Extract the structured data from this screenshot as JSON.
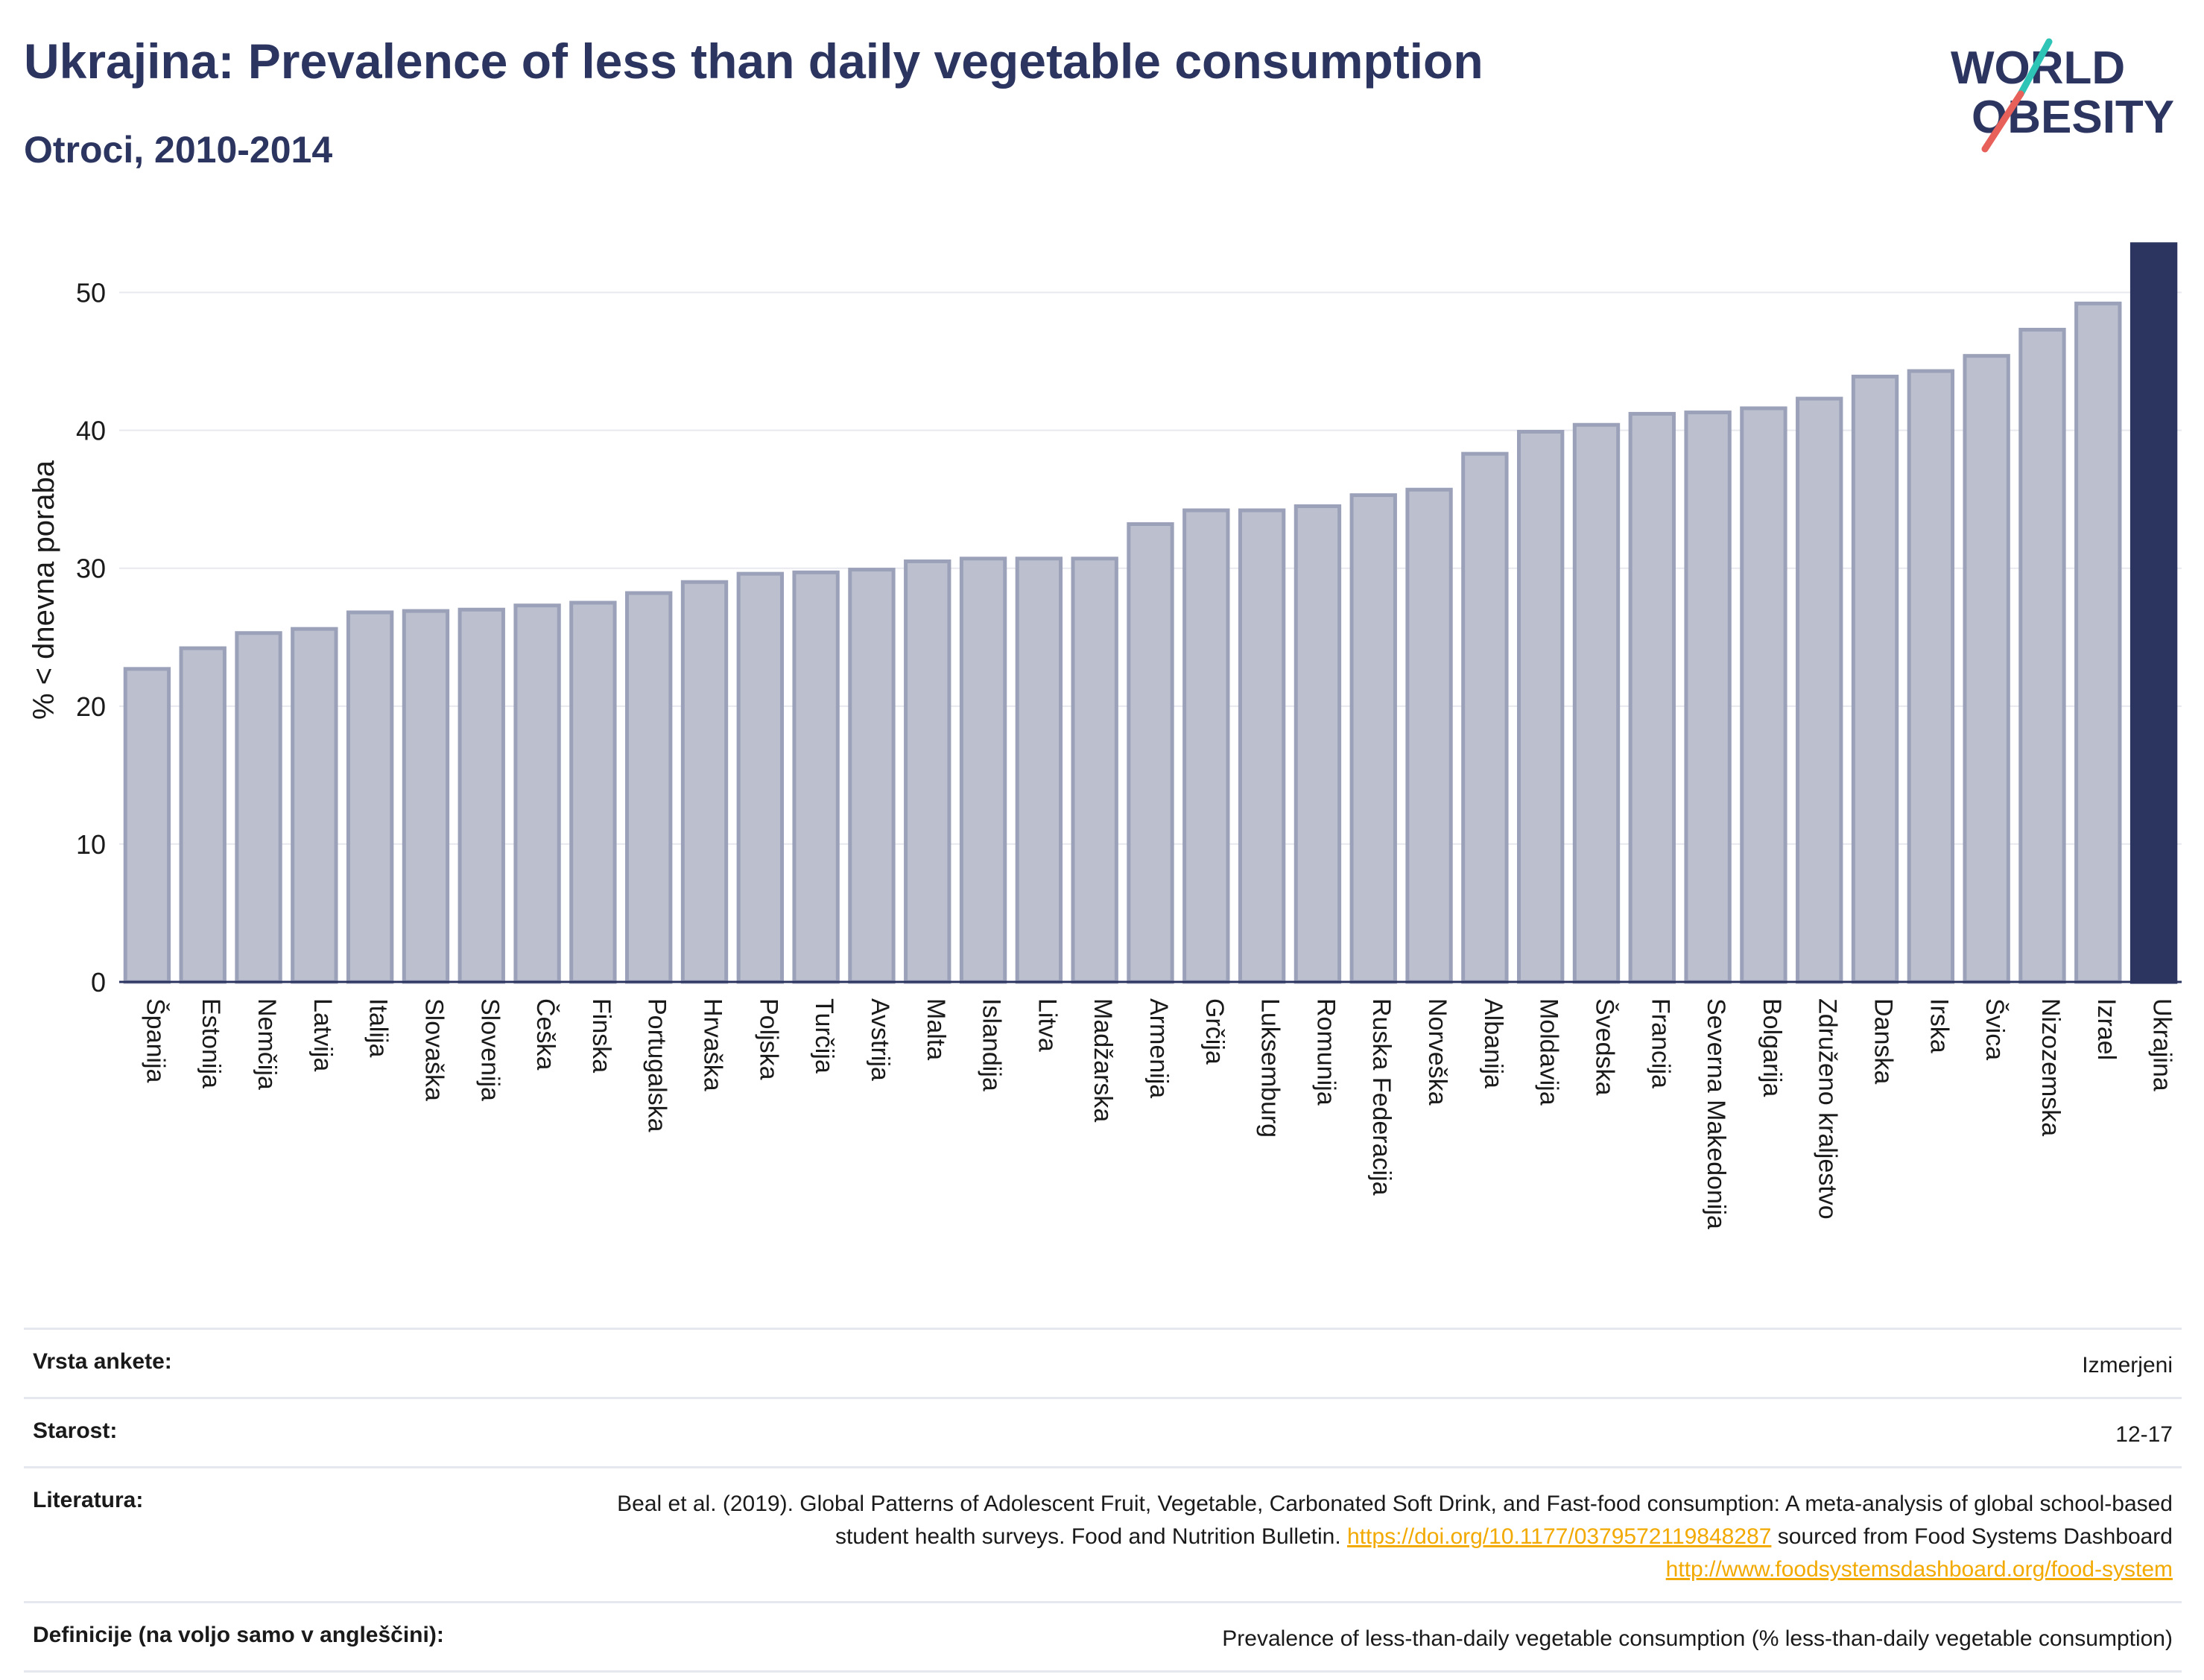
{
  "header": {
    "title": "Ukrajina: Prevalence of less than daily vegetable consumption",
    "subtitle": "Otroci, 2010-2014"
  },
  "logo": {
    "line1": "WORLD",
    "line2": "OBESITY",
    "accent_teal": "#2ec4b6",
    "accent_red": "#e8605a"
  },
  "colors": {
    "bar": "#bcc0ce",
    "bar_edge": "#9ba1b8",
    "highlight": "#2b3560",
    "grid": "#e8e9ef",
    "axis": "#2b3560"
  },
  "chart_data": {
    "type": "bar",
    "ylabel": "% < dnevna poraba",
    "ylim": [
      0,
      55
    ],
    "yticks": [
      0,
      10,
      20,
      30,
      40,
      50
    ],
    "grid": true,
    "highlight": "Ukrajina",
    "categories": [
      "Španija",
      "Estonija",
      "Nemčija",
      "Latvija",
      "Italija",
      "Slovaška",
      "Slovenija",
      "Češka",
      "Finska",
      "Portugalska",
      "Hrvaška",
      "Poljska",
      "Turčija",
      "Avstrija",
      "Malta",
      "Islandija",
      "Litva",
      "Madžarska",
      "Armenija",
      "Grčija",
      "Luksemburg",
      "Romunija",
      "Ruska Federacija",
      "Norveška",
      "Albanija",
      "Moldavija",
      "Švedska",
      "Francija",
      "Severna Makedonija",
      "Bolgarija",
      "Združeno kraljestvo",
      "Danska",
      "Irska",
      "Švica",
      "Nizozemska",
      "Izrael",
      "Ukrajina"
    ],
    "values": [
      22.7,
      24.2,
      25.3,
      25.6,
      26.8,
      26.9,
      27.0,
      27.3,
      27.5,
      28.2,
      29.0,
      29.6,
      29.7,
      29.9,
      30.5,
      30.7,
      30.7,
      30.7,
      33.2,
      34.2,
      34.2,
      34.5,
      35.3,
      35.7,
      38.3,
      39.9,
      40.4,
      41.2,
      41.3,
      41.6,
      42.3,
      43.9,
      44.3,
      45.4,
      47.3,
      49.2,
      53.5
    ]
  },
  "info": [
    {
      "label": "Vrsta ankete:",
      "value": "Izmerjeni"
    },
    {
      "label": "Starost:",
      "value": "12-17"
    },
    {
      "label": "Literatura:",
      "value_text1": "Beal et al. (2019). Global Patterns of Adolescent Fruit, Vegetable, Carbonated Soft Drink, and Fast-food consumption: A meta-analysis of global school-based student health surveys. Food and Nutrition Bulletin. ",
      "link1": "https://doi.org/10.1177/0379572119848287",
      "value_text2": " sourced from Food Systems Dashboard ",
      "link2": "http://www.foodsystemsdashboard.org/food-system"
    },
    {
      "label": "Definicije (na voljo samo v angleščini):",
      "value": "Prevalence of less-than-daily vegetable consumption (% less-than-daily vegetable consumption)"
    }
  ]
}
